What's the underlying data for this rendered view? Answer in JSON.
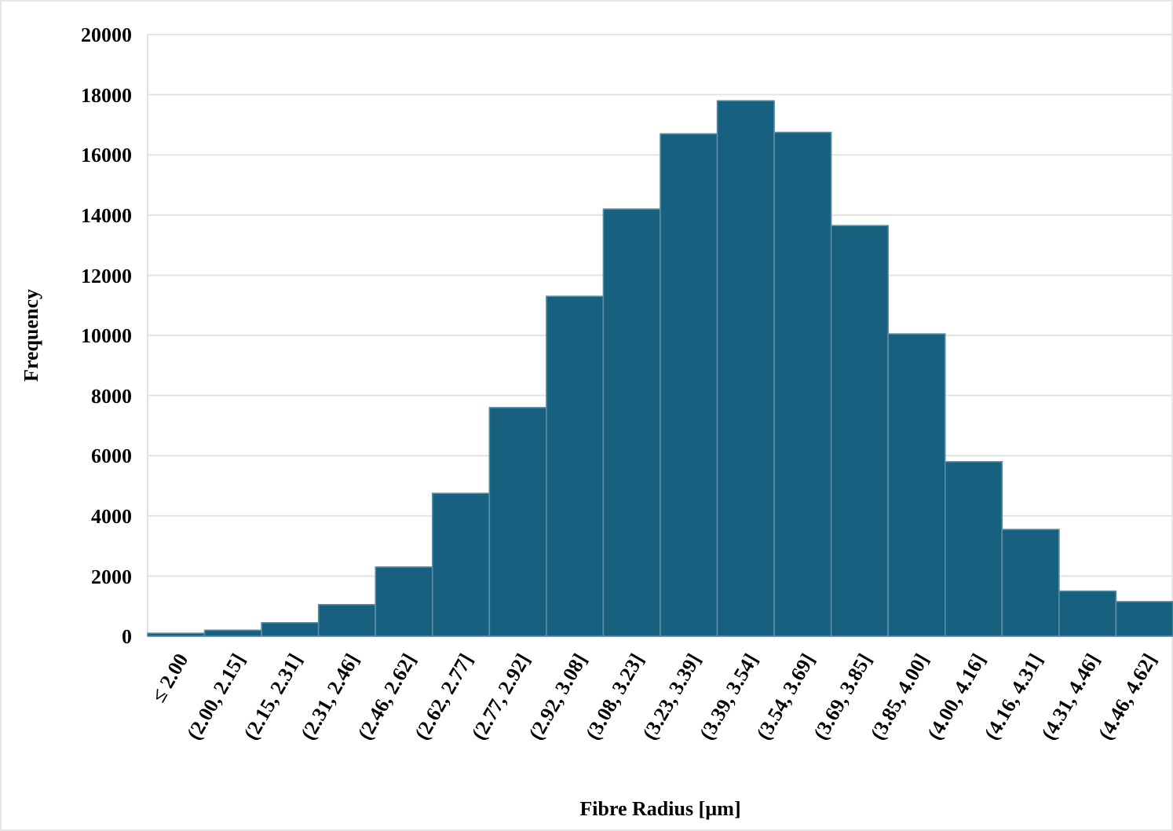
{
  "chart_data": {
    "type": "bar",
    "xlabel": "Fibre Radius [µm]",
    "ylabel": "Frequency",
    "categories": [
      "≤ 2.00",
      "(2.00, 2.15]",
      "(2.15, 2.31]",
      "(2.31, 2.46]",
      "(2.46, 2.62]",
      "(2.62, 2.77]",
      "(2.77, 2.92]",
      "(2.92, 3.08]",
      "(3.08, 3.23]",
      "(3.23, 3.39]",
      "(3.39, 3.54]",
      "(3.54, 3.69]",
      "(3.69, 3.85]",
      "(3.85, 4.00]",
      "(4.00, 4.16]",
      "(4.16, 4.31]",
      "(4.31, 4.46]",
      "(4.46, 4.62]"
    ],
    "values": [
      100,
      200,
      450,
      1050,
      2300,
      4750,
      7600,
      11300,
      14200,
      16700,
      17800,
      16750,
      13650,
      10050,
      5800,
      3550,
      1500,
      1150
    ],
    "color": "#17607f",
    "ylim": [
      0,
      20000
    ],
    "yticks": [
      0,
      2000,
      4000,
      6000,
      8000,
      10000,
      12000,
      14000,
      16000,
      18000,
      20000
    ],
    "grid": "y"
  }
}
